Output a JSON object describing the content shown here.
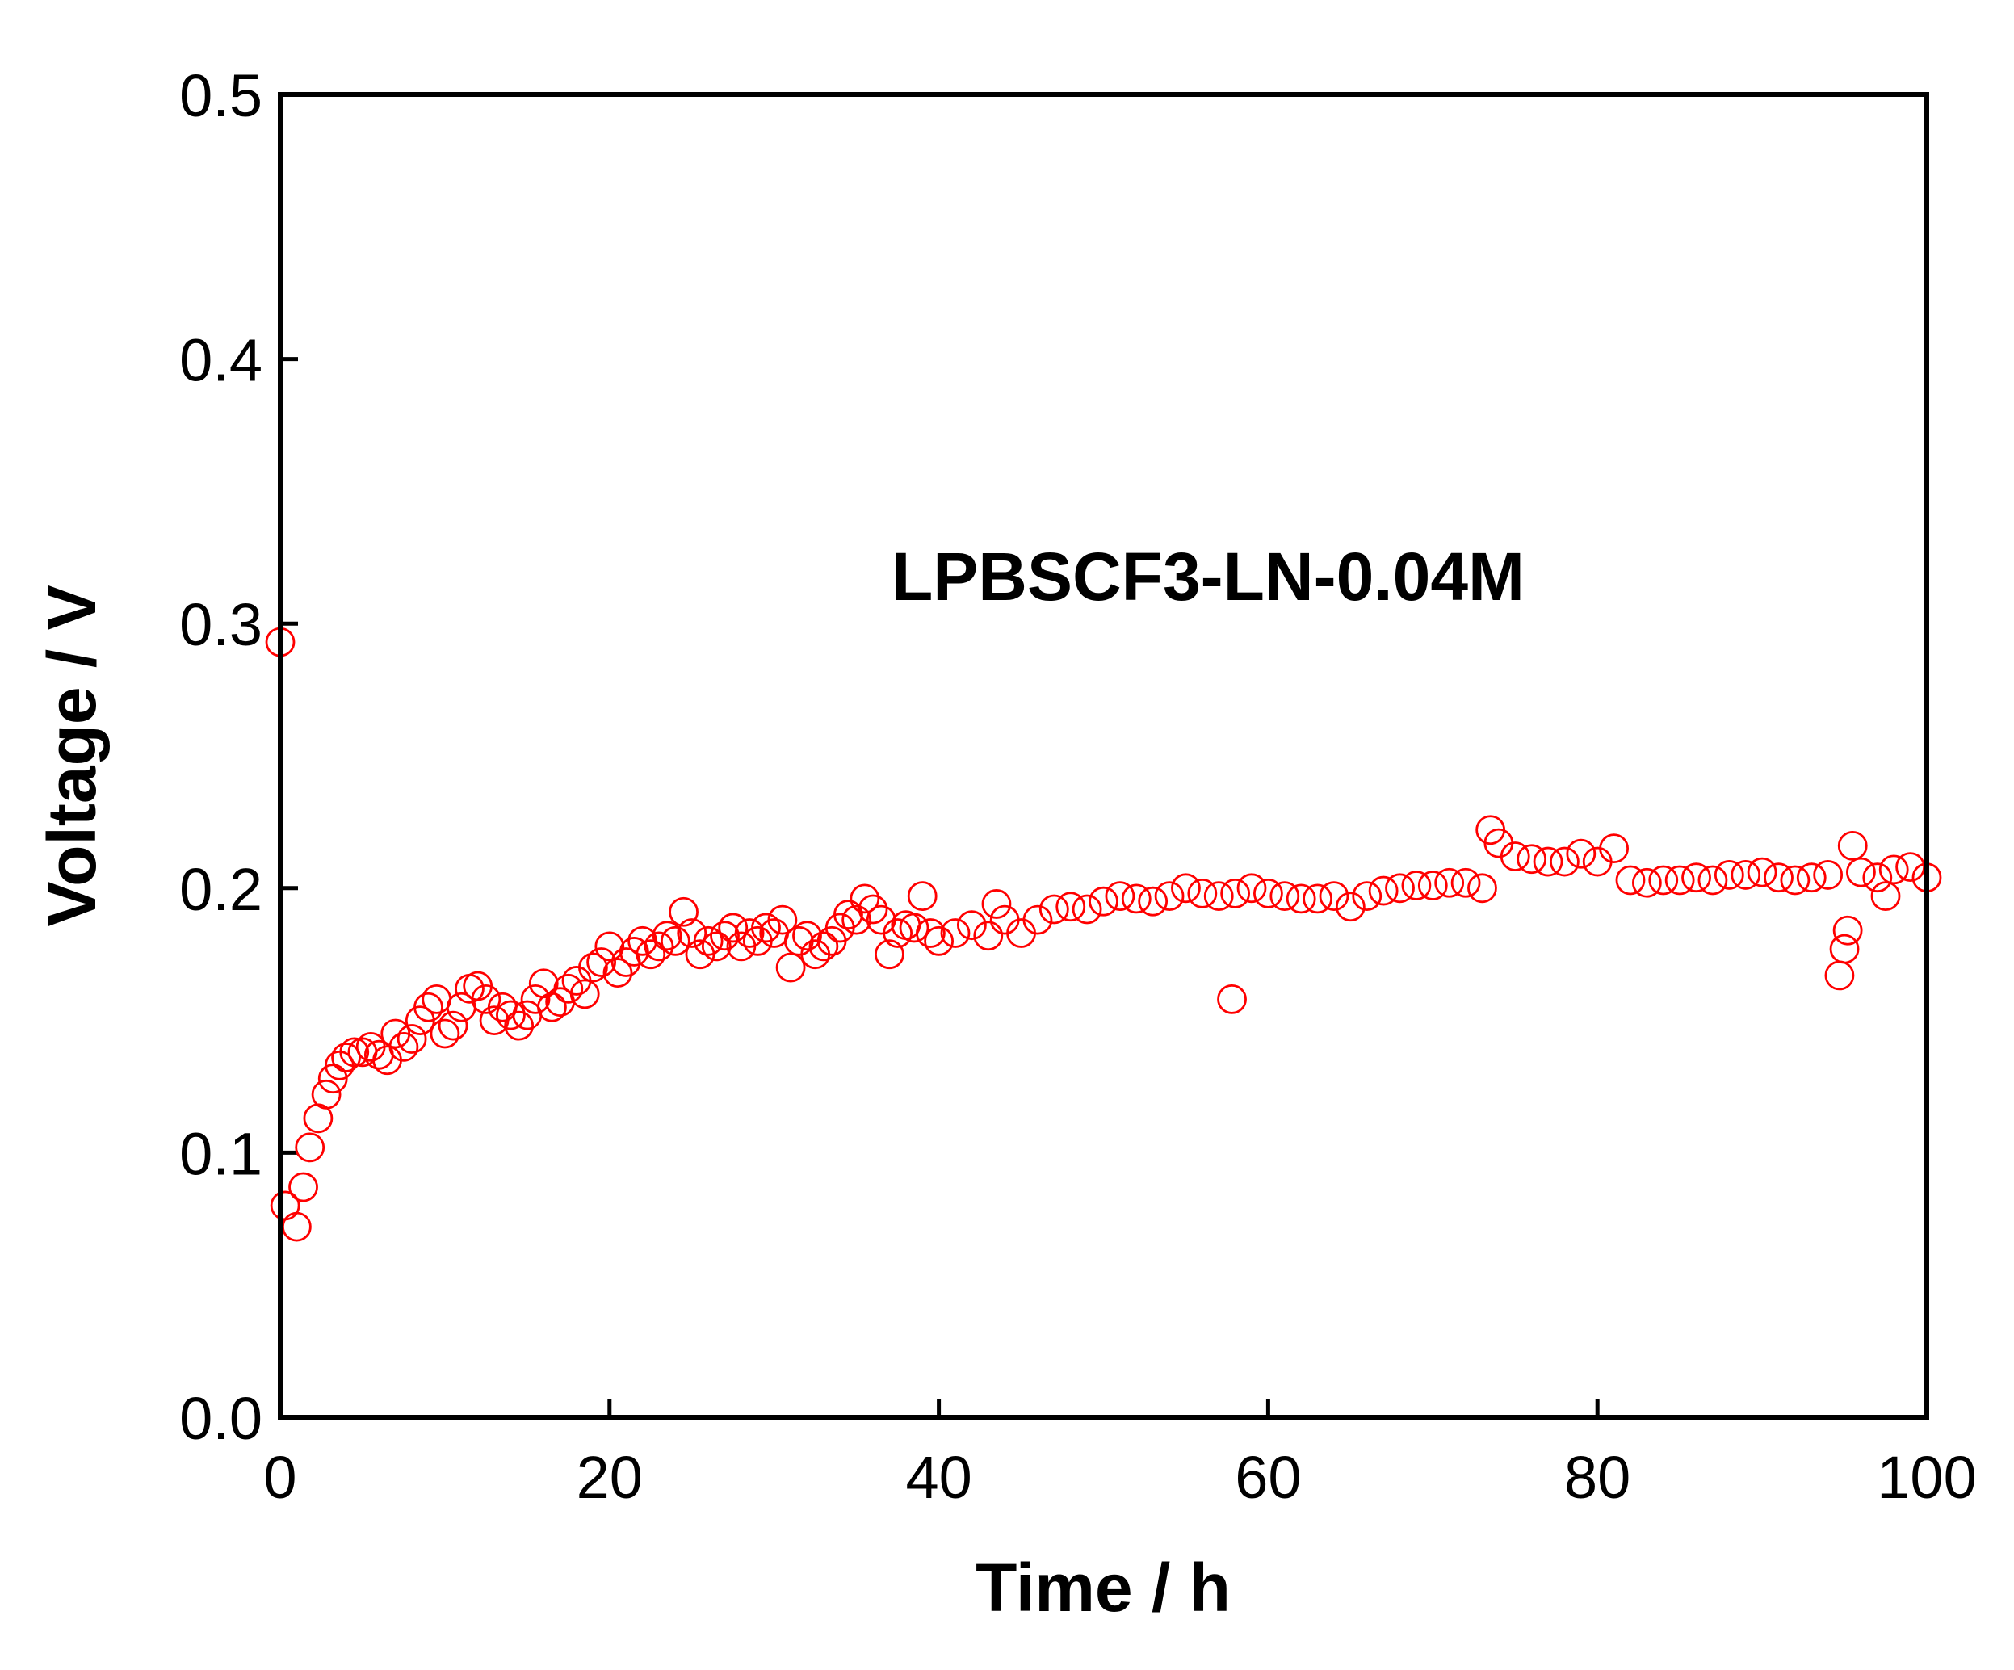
{
  "chart_data": {
    "type": "scatter",
    "xlabel": "Time / h",
    "ylabel": "Voltage / V",
    "annotation": "LPBSCF3-LN-0.04M",
    "xlim": [
      0,
      100
    ],
    "ylim": [
      0,
      0.5
    ],
    "xticks": [
      0,
      20,
      40,
      60,
      80,
      100
    ],
    "yticks": [
      {
        "value": 0,
        "label": "0.0"
      },
      0.1,
      0.2,
      0.3,
      0.4,
      0.5
    ],
    "series": [
      {
        "color": "#ff0000",
        "x": [
          0,
          0.3,
          1,
          1.4,
          1.8,
          2.3,
          2.8,
          3.2,
          3.6,
          4,
          4.5,
          5,
          5.5,
          6,
          6.5,
          7,
          7.5,
          8,
          8.5,
          9,
          9.5,
          10,
          10.5,
          11,
          11.5,
          12,
          12.5,
          13,
          13.5,
          14,
          14.5,
          15,
          15.5,
          16,
          16.5,
          17,
          17.5,
          18,
          18.5,
          19,
          19.5,
          20,
          20.5,
          21,
          21.5,
          22,
          22.5,
          23,
          23.5,
          24,
          24.5,
          25,
          25.5,
          26,
          26.5,
          27,
          27.5,
          28,
          28.5,
          29,
          29.5,
          30,
          30.5,
          31,
          31.5,
          32,
          32.5,
          33,
          33.5,
          34,
          34.5,
          35,
          35.5,
          36,
          36.5,
          37,
          37.5,
          38,
          38.5,
          39,
          39.5,
          40,
          41,
          42,
          43,
          43.5,
          44,
          45,
          46,
          47,
          48,
          49,
          50,
          51,
          52,
          53,
          54,
          55,
          56,
          57,
          57.8,
          58,
          59,
          60,
          61,
          62,
          63,
          64,
          65,
          66,
          67,
          68,
          69,
          70,
          71,
          72,
          73,
          73.5,
          74,
          75,
          76,
          77,
          78,
          79,
          80,
          81,
          82,
          83,
          84,
          85,
          86,
          87,
          88,
          89,
          90,
          91,
          92,
          93,
          94,
          94.7,
          95,
          95.2,
          95.5,
          96,
          97,
          97.5,
          98,
          99,
          100
        ],
        "values": [
          0.293,
          0.08,
          0.072,
          0.087,
          0.102,
          0.113,
          0.122,
          0.128,
          0.133,
          0.136,
          0.138,
          0.138,
          0.14,
          0.137,
          0.135,
          0.145,
          0.14,
          0.143,
          0.15,
          0.155,
          0.158,
          0.145,
          0.148,
          0.155,
          0.162,
          0.163,
          0.158,
          0.15,
          0.155,
          0.152,
          0.148,
          0.152,
          0.158,
          0.164,
          0.155,
          0.157,
          0.162,
          0.165,
          0.16,
          0.17,
          0.172,
          0.178,
          0.168,
          0.172,
          0.176,
          0.18,
          0.175,
          0.178,
          0.182,
          0.18,
          0.191,
          0.183,
          0.175,
          0.18,
          0.178,
          0.182,
          0.185,
          0.178,
          0.183,
          0.18,
          0.185,
          0.183,
          0.188,
          0.17,
          0.18,
          0.182,
          0.175,
          0.178,
          0.18,
          0.185,
          0.19,
          0.188,
          0.196,
          0.192,
          0.188,
          0.175,
          0.183,
          0.186,
          0.185,
          0.197,
          0.183,
          0.18,
          0.183,
          0.186,
          0.182,
          0.194,
          0.188,
          0.183,
          0.188,
          0.192,
          0.193,
          0.192,
          0.195,
          0.197,
          0.196,
          0.195,
          0.197,
          0.2,
          0.198,
          0.197,
          0.158,
          0.198,
          0.2,
          0.198,
          0.197,
          0.196,
          0.196,
          0.197,
          0.193,
          0.197,
          0.199,
          0.2,
          0.201,
          0.201,
          0.202,
          0.202,
          0.2,
          0.222,
          0.217,
          0.212,
          0.211,
          0.21,
          0.21,
          0.213,
          0.21,
          0.215,
          0.203,
          0.202,
          0.203,
          0.203,
          0.204,
          0.203,
          0.205,
          0.205,
          0.206,
          0.204,
          0.203,
          0.204,
          0.205,
          0.167,
          0.177,
          0.184,
          0.216,
          0.206,
          0.204,
          0.197,
          0.207,
          0.208,
          0.204
        ]
      }
    ]
  }
}
